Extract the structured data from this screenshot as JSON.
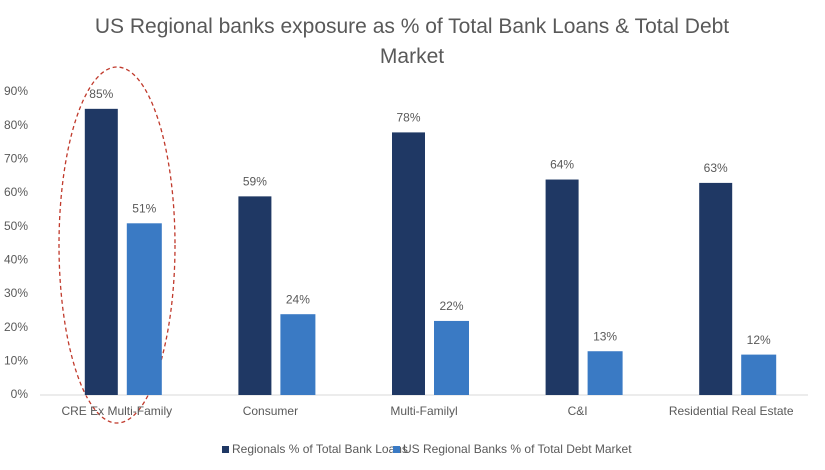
{
  "chart_data": {
    "type": "bar",
    "title": "US Regional banks exposure as % of Total Bank Loans & Total Debt Market",
    "categories": [
      "CRE Ex Multi-Family",
      "Consumer",
      "Multi-Familyl",
      "C&I",
      "Residential Real Estate"
    ],
    "series": [
      {
        "name": "Regionals % of Total Bank Loans",
        "color": "#1f3864",
        "values": [
          85,
          59,
          78,
          64,
          63
        ],
        "value_labels": [
          "85%",
          "59%",
          "78%",
          "64%",
          "63%"
        ]
      },
      {
        "name": "US Regional Banks % of Total Debt Market",
        "color": "#3a7ac4",
        "values": [
          51,
          24,
          22,
          13,
          12
        ],
        "value_labels": [
          "51%",
          "24%",
          "22%",
          "13%",
          "12%"
        ]
      }
    ],
    "ylim": [
      0,
      90
    ],
    "yticks": [
      {
        "value": 0,
        "label": "0%"
      },
      {
        "value": 10,
        "label": "10%"
      },
      {
        "value": 20,
        "label": "20%"
      },
      {
        "value": 30,
        "label": "30%"
      },
      {
        "value": 40,
        "label": "40%"
      },
      {
        "value": 50,
        "label": "50%"
      },
      {
        "value": 60,
        "label": "60%"
      },
      {
        "value": 70,
        "label": "70%"
      },
      {
        "value": 80,
        "label": "80%"
      },
      {
        "value": 90,
        "label": "90%"
      }
    ],
    "grid": false,
    "legend": "bottom"
  }
}
